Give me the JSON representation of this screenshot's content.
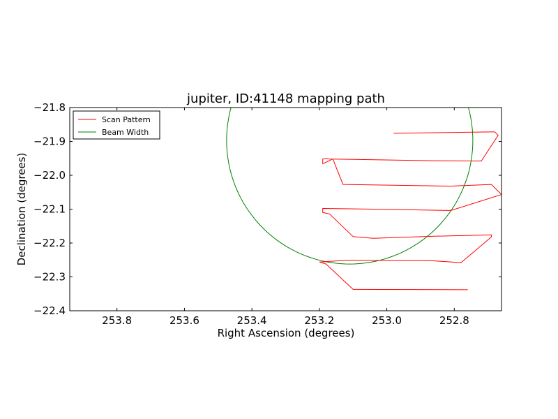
{
  "chart_data": {
    "type": "line",
    "title": "jupiter, ID:41148 mapping path",
    "xlabel": "Right Ascension (degrees)",
    "ylabel": "Declination (degrees)",
    "xlim": [
      253.94,
      252.66
    ],
    "ylim": [
      -22.4,
      -21.8
    ],
    "x_inverted": true,
    "grid": false,
    "legend_position": "upper-left",
    "x_ticks": [
      {
        "value": 253.8,
        "label": "253.8"
      },
      {
        "value": 253.6,
        "label": "253.6"
      },
      {
        "value": 253.4,
        "label": "253.4"
      },
      {
        "value": 253.2,
        "label": "253.2"
      },
      {
        "value": 253.0,
        "label": "253.0"
      },
      {
        "value": 252.8,
        "label": "252.8"
      }
    ],
    "y_ticks": [
      {
        "value": -21.8,
        "label": "−21.8"
      },
      {
        "value": -21.9,
        "label": "−21.9"
      },
      {
        "value": -22.0,
        "label": "−22.0"
      },
      {
        "value": -22.1,
        "label": "−22.1"
      },
      {
        "value": -22.2,
        "label": "−22.2"
      },
      {
        "value": -22.3,
        "label": "−22.3"
      },
      {
        "value": -22.4,
        "label": "−22.4"
      }
    ],
    "series": [
      {
        "name": "Scan Pattern",
        "color": "#ff0000",
        "kind": "path",
        "x": [
          252.98,
          252.69,
          252.68,
          252.67,
          252.72,
          252.87,
          253.17,
          253.18,
          253.19,
          253.19,
          253.16,
          253.13,
          252.81,
          252.69,
          252.66,
          252.81,
          253.04,
          253.19,
          253.19,
          253.17,
          253.1,
          253.04,
          252.86,
          252.69,
          252.69,
          252.78,
          252.87,
          253.12,
          253.2,
          253.18,
          253.1,
          252.76
        ],
        "y": [
          -21.876,
          -21.872,
          -21.872,
          -21.882,
          -21.958,
          -21.957,
          -21.952,
          -21.951,
          -21.952,
          -21.966,
          -21.952,
          -22.027,
          -22.032,
          -22.027,
          -22.057,
          -22.104,
          -22.1,
          -22.098,
          -22.11,
          -22.114,
          -22.181,
          -22.186,
          -22.18,
          -22.176,
          -22.182,
          -22.258,
          -22.252,
          -22.251,
          -22.256,
          -22.262,
          -22.337,
          -22.338
        ]
      },
      {
        "name": "Beam Width",
        "color": "#008000",
        "kind": "circle",
        "center": [
          253.11,
          -21.897
        ],
        "radius": 0.365
      }
    ]
  }
}
